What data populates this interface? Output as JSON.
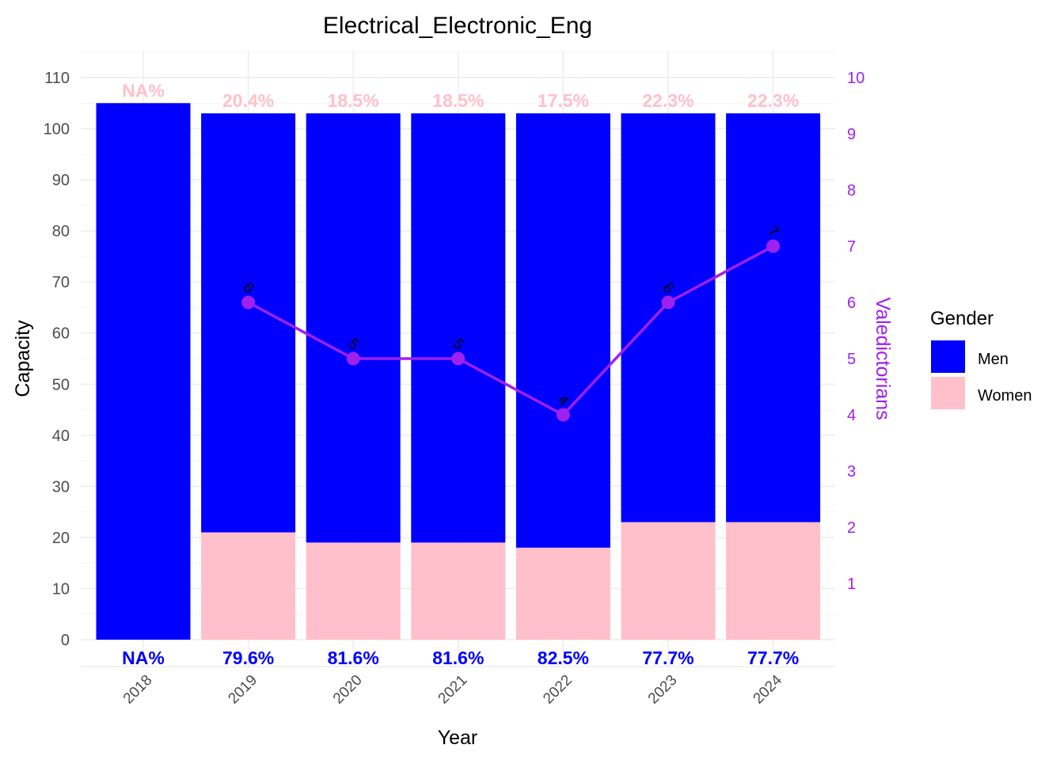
{
  "chart_data": {
    "type": "bar",
    "title": "Electrical_Electronic_Eng",
    "xlabel": "Year",
    "ylabel": "Capacity",
    "y2label": "Valedictorians",
    "categories": [
      "2018",
      "2019",
      "2020",
      "2021",
      "2022",
      "2023",
      "2024"
    ],
    "ylim": [
      0,
      110
    ],
    "y_ticks": [
      0,
      10,
      20,
      30,
      40,
      50,
      60,
      70,
      80,
      90,
      100,
      110
    ],
    "y2lim": [
      0,
      10
    ],
    "y2_ticks": [
      1,
      2,
      3,
      4,
      5,
      6,
      7,
      8,
      9,
      10
    ],
    "stacked": true,
    "series": [
      {
        "name": "Women",
        "color": "#ffc0cb",
        "values": [
          0,
          21,
          19,
          19,
          18,
          23,
          23
        ]
      },
      {
        "name": "Men",
        "color": "#0000ff",
        "values": [
          105,
          82,
          84,
          84,
          85,
          80,
          80
        ]
      }
    ],
    "women_pct_labels": [
      "NA%",
      "20.4%",
      "18.5%",
      "18.5%",
      "17.5%",
      "22.3%",
      "22.3%"
    ],
    "men_pct_labels": [
      "NA%",
      "79.6%",
      "81.6%",
      "81.6%",
      "82.5%",
      "77.7%",
      "77.7%"
    ],
    "line_series": {
      "axis": "right",
      "color": "#a020f0",
      "x": [
        "2019",
        "2020",
        "2021",
        "2022",
        "2023",
        "2024"
      ],
      "values": [
        6,
        5,
        5,
        4,
        6,
        7
      ],
      "labels": [
        "6",
        "5",
        "5",
        "4",
        "6",
        "7"
      ]
    },
    "legend": {
      "title": "Gender",
      "position": "right",
      "entries": [
        {
          "label": "Men",
          "color": "#0000ff"
        },
        {
          "label": "Women",
          "color": "#ffc0cb"
        }
      ]
    },
    "grid": true
  }
}
